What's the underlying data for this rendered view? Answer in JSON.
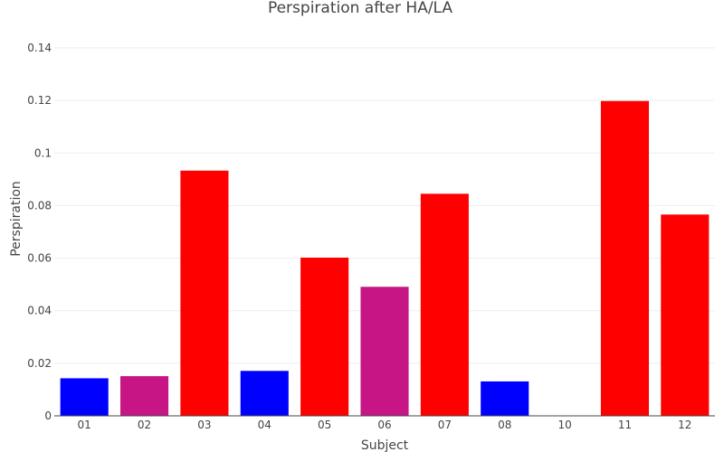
{
  "chart_data": {
    "type": "bar",
    "title": "Perspiration after HA/LA",
    "xlabel": "Subject",
    "ylabel": "Perspiration",
    "categories": [
      "01",
      "02",
      "03",
      "04",
      "05",
      "06",
      "07",
      "08",
      "10",
      "11",
      "12"
    ],
    "values": [
      0.0143,
      0.0151,
      0.0933,
      0.0171,
      0.0602,
      0.0491,
      0.0845,
      0.0131,
      0,
      0.1198,
      0.0766
    ],
    "bar_colors": [
      "#0000ff",
      "#c71585",
      "#ff0000",
      "#0000ff",
      "#ff0000",
      "#c71585",
      "#ff0000",
      "#0000ff",
      "#0000ff",
      "#ff0000",
      "#ff0000"
    ],
    "ylim": [
      0,
      0.14
    ],
    "yticks": [
      0,
      0.02,
      0.04,
      0.06,
      0.08,
      0.1,
      0.12,
      0.14
    ],
    "ytick_labels": [
      "0",
      "0.02",
      "0.04",
      "0.06",
      "0.08",
      "0.1",
      "0.12",
      "0.14"
    ],
    "grid": true,
    "legend": "none"
  }
}
